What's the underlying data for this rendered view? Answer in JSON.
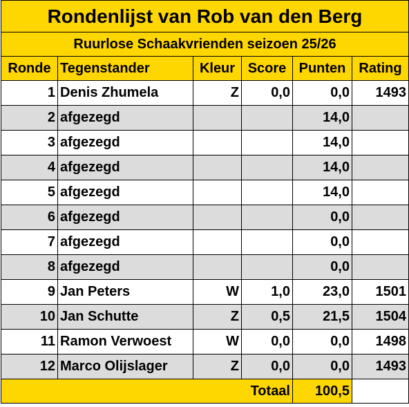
{
  "title": "Rondenlijst van Rob van den Berg",
  "subtitle": "Ruurlose Schaakvrienden seizoen 25/26",
  "headers": {
    "ronde": "Ronde",
    "tegenstander": "Tegenstander",
    "kleur": "Kleur",
    "score": "Score",
    "punten": "Punten",
    "rating": "Rating"
  },
  "rows": [
    {
      "ronde": "1",
      "tegenstander": "Denis Zhumela",
      "kleur": "Z",
      "score": "0,0",
      "punten": "0,0",
      "rating": "1493"
    },
    {
      "ronde": "2",
      "tegenstander": "afgezegd",
      "kleur": "",
      "score": "",
      "punten": "14,0",
      "rating": ""
    },
    {
      "ronde": "3",
      "tegenstander": "afgezegd",
      "kleur": "",
      "score": "",
      "punten": "14,0",
      "rating": ""
    },
    {
      "ronde": "4",
      "tegenstander": "afgezegd",
      "kleur": "",
      "score": "",
      "punten": "14,0",
      "rating": ""
    },
    {
      "ronde": "5",
      "tegenstander": "afgezegd",
      "kleur": "",
      "score": "",
      "punten": "14,0",
      "rating": ""
    },
    {
      "ronde": "6",
      "tegenstander": "afgezegd",
      "kleur": "",
      "score": "",
      "punten": "0,0",
      "rating": ""
    },
    {
      "ronde": "7",
      "tegenstander": "afgezegd",
      "kleur": "",
      "score": "",
      "punten": "0,0",
      "rating": ""
    },
    {
      "ronde": "8",
      "tegenstander": "afgezegd",
      "kleur": "",
      "score": "",
      "punten": "0,0",
      "rating": ""
    },
    {
      "ronde": "9",
      "tegenstander": "Jan Peters",
      "kleur": "W",
      "score": "1,0",
      "punten": "23,0",
      "rating": "1501"
    },
    {
      "ronde": "10",
      "tegenstander": "Jan Schutte",
      "kleur": "Z",
      "score": "0,5",
      "punten": "21,5",
      "rating": "1504"
    },
    {
      "ronde": "11",
      "tegenstander": "Ramon Verwoest",
      "kleur": "W",
      "score": "0,0",
      "punten": "0,0",
      "rating": "1498"
    },
    {
      "ronde": "12",
      "tegenstander": "Marco Olijslager",
      "kleur": "Z",
      "score": "0,0",
      "punten": "0,0",
      "rating": "1493"
    }
  ],
  "total": {
    "label": "Totaal",
    "value": "100,5"
  },
  "colors": {
    "header_bg": "#ffd700",
    "alt_row_bg": "#dcdcdc",
    "row_bg": "#ffffff"
  }
}
